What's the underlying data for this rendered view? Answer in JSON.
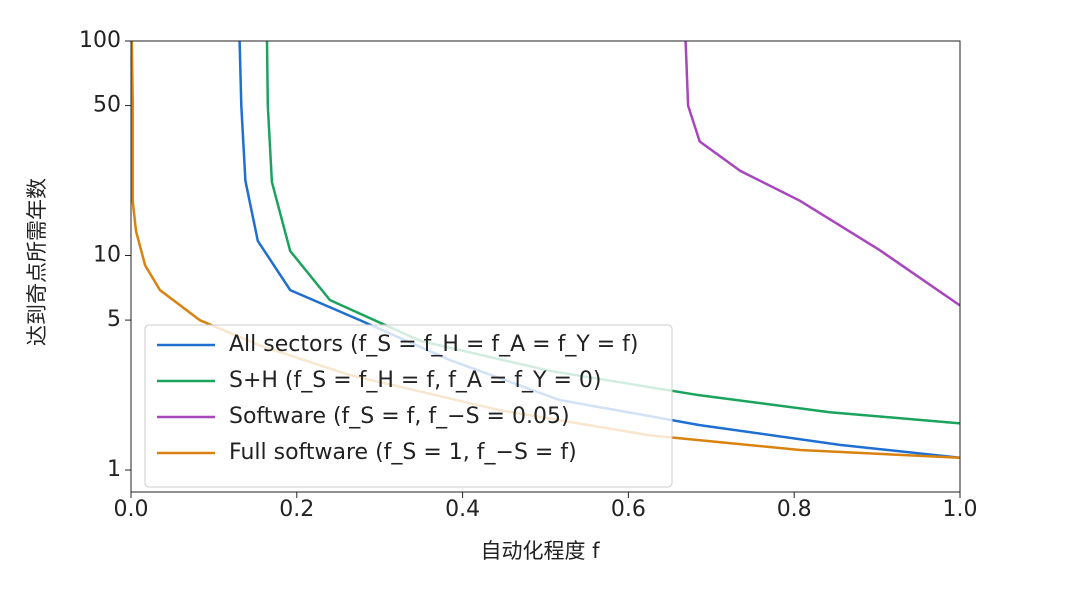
{
  "chart_data": {
    "type": "line",
    "xlabel": "自动化程度 f",
    "ylabel": "达到奇点所需年数",
    "yscale": "log",
    "xlim": [
      0,
      1
    ],
    "ylim": [
      0.79,
      100
    ],
    "xticks": [
      {
        "value": 0,
        "label": "0.0"
      },
      0.2,
      0.4,
      0.6,
      0.8,
      {
        "value": 1,
        "label": "1.0"
      }
    ],
    "yticks": [
      1,
      5,
      10,
      50,
      100
    ],
    "legend": "lower left",
    "series": [
      {
        "name": "All sectors (f_S = f_H = f_A = f_Y = f)",
        "color": "#1f6fd0",
        "x": [
          0.131,
          0.133,
          0.138,
          0.153,
          0.192,
          0.276,
          0.385,
          0.517,
          0.686,
          0.855,
          1.0
        ],
        "values": [
          100,
          50,
          22.3,
          11.7,
          6.9,
          5,
          3.25,
          2.12,
          1.62,
          1.31,
          1.14
        ]
      },
      {
        "name": "S+H (f_S = f_H = f, f_A = f_Y = 0)",
        "color": "#1ba35e",
        "x": [
          0.164,
          0.165,
          0.17,
          0.192,
          0.24,
          0.349,
          0.505,
          0.686,
          0.843,
          1.0
        ],
        "values": [
          100,
          50,
          22,
          10.5,
          6.2,
          4.0,
          2.9,
          2.23,
          1.86,
          1.65
        ]
      },
      {
        "name": "Software (f_S = f, f_−S = 0.05)",
        "color": "#a846be",
        "x": [
          0.669,
          0.672,
          0.686,
          0.735,
          0.807,
          0.903,
          1.0
        ],
        "values": [
          100,
          50,
          34,
          24.8,
          18,
          10.6,
          5.85
        ]
      },
      {
        "name": "Full software (f_S = 1, f_−S = f)",
        "color": "#d9820f",
        "x": [
          0.001,
          0.002,
          0.002,
          0.006,
          0.017,
          0.035,
          0.083,
          0.156,
          0.264,
          0.445,
          0.626,
          0.807,
          1.0
        ],
        "values": [
          100,
          52,
          18,
          13,
          9,
          6.9,
          5,
          3.8,
          2.77,
          1.9,
          1.45,
          1.24,
          1.14
        ]
      }
    ]
  }
}
